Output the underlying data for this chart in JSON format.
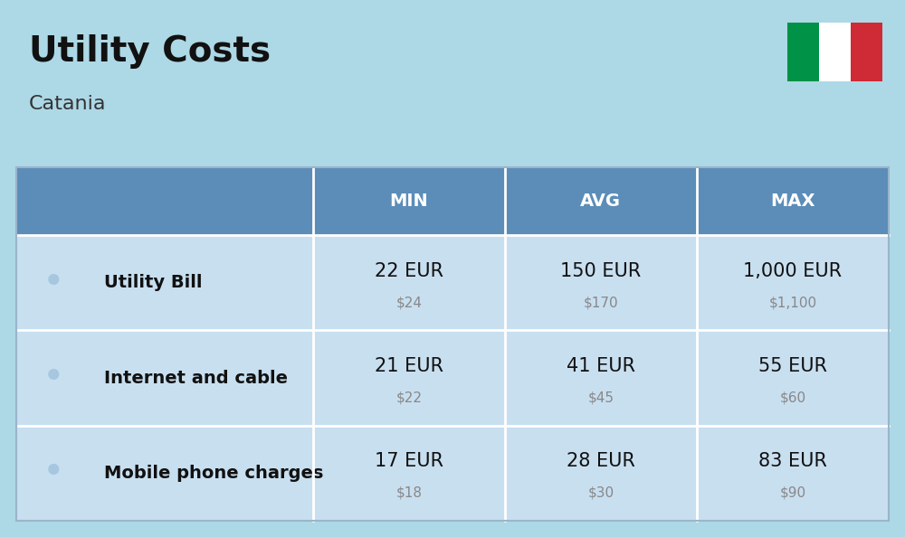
{
  "title": "Utility Costs",
  "subtitle": "Catania",
  "background_color": "#add8e6",
  "header_bg_color": "#5b8db8",
  "header_text_color": "#ffffff",
  "row_color": "#c8dff0",
  "headers": [
    "MIN",
    "AVG",
    "MAX"
  ],
  "rows": [
    {
      "label": "Utility Bill",
      "min_eur": "22 EUR",
      "min_usd": "$24",
      "avg_eur": "150 EUR",
      "avg_usd": "$170",
      "max_eur": "1,000 EUR",
      "max_usd": "$1,100"
    },
    {
      "label": "Internet and cable",
      "min_eur": "21 EUR",
      "min_usd": "$22",
      "avg_eur": "41 EUR",
      "avg_usd": "$45",
      "max_eur": "55 EUR",
      "max_usd": "$60"
    },
    {
      "label": "Mobile phone charges",
      "min_eur": "17 EUR",
      "min_usd": "$18",
      "avg_eur": "28 EUR",
      "avg_usd": "$30",
      "max_eur": "83 EUR",
      "max_usd": "$90"
    }
  ],
  "flag_colors": [
    "#009246",
    "#ffffff",
    "#ce2b37"
  ],
  "title_fontsize": 28,
  "subtitle_fontsize": 16,
  "eur_fontsize": 15,
  "usd_fontsize": 11,
  "label_fontsize": 14,
  "header_fontsize": 14
}
